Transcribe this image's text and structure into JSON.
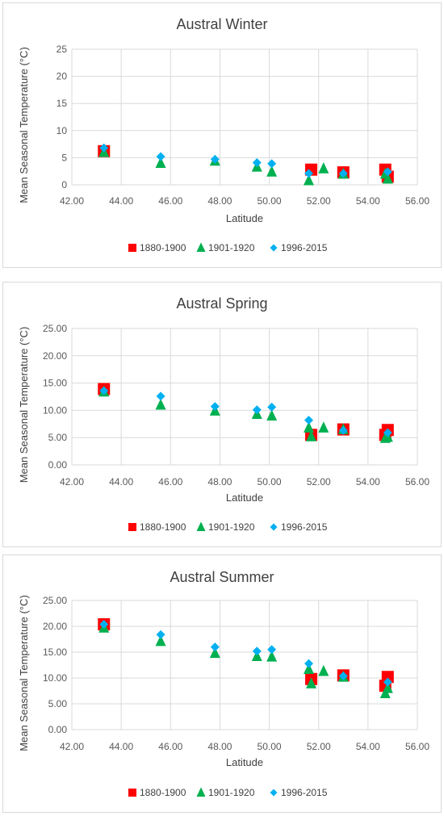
{
  "chart_data": [
    {
      "type": "scatter",
      "title": "Austral Winter",
      "xlabel": "Latitude",
      "ylabel": "Mean Seasonal Temperature (°C)",
      "xlim": [
        42,
        56
      ],
      "ylim": [
        0,
        25
      ],
      "x_ticks": [
        "42.00",
        "44.00",
        "46.00",
        "48.00",
        "50.00",
        "52.00",
        "54.00",
        "56.00"
      ],
      "y_ticks": [
        "0",
        "5",
        "10",
        "15",
        "20",
        "25"
      ],
      "grid": true,
      "legend": "bottom",
      "series": [
        {
          "name": "1880-1900",
          "color": "#ff0000",
          "marker": "square",
          "x": [
            43.3,
            51.7,
            53.0,
            54.7,
            54.8
          ],
          "y": [
            6.2,
            2.8,
            2.3,
            2.8,
            1.5
          ]
        },
        {
          "name": "1901-1920",
          "color": "#00b050",
          "marker": "triangle",
          "x": [
            43.3,
            45.6,
            47.8,
            49.5,
            50.1,
            51.6,
            52.2,
            53.0,
            54.7,
            54.8
          ],
          "y": [
            6.0,
            4.0,
            4.4,
            3.3,
            2.4,
            0.8,
            3.0,
            2.0,
            2.0,
            1.1
          ]
        },
        {
          "name": "1996-2015",
          "color": "#00b0f0",
          "marker": "diamond",
          "x": [
            43.3,
            45.6,
            47.8,
            49.5,
            50.1,
            51.6,
            53.0,
            54.8
          ],
          "y": [
            6.8,
            5.2,
            4.7,
            4.1,
            3.9,
            2.1,
            2.1,
            2.4
          ]
        }
      ]
    },
    {
      "type": "scatter",
      "title": "Austral Spring",
      "xlabel": "Latitude",
      "ylabel": "Mean Seasonal Temperature (°C)",
      "xlim": [
        42,
        56
      ],
      "ylim": [
        0,
        25
      ],
      "x_ticks": [
        "42.00",
        "44.00",
        "46.00",
        "48.00",
        "50.00",
        "52.00",
        "54.00",
        "56.00"
      ],
      "y_ticks": [
        "0.00",
        "5.00",
        "10.00",
        "15.00",
        "20.00",
        "25.00"
      ],
      "grid": true,
      "legend": "bottom",
      "series": [
        {
          "name": "1880-1900",
          "color": "#ff0000",
          "marker": "square",
          "x": [
            43.3,
            51.7,
            53.0,
            54.7,
            54.8
          ],
          "y": [
            13.9,
            5.5,
            6.5,
            5.5,
            6.4
          ]
        },
        {
          "name": "1901-1920",
          "color": "#00b050",
          "marker": "triangle",
          "x": [
            43.3,
            45.6,
            47.8,
            49.5,
            50.1,
            51.6,
            51.7,
            52.2,
            53.0,
            54.7,
            54.8
          ],
          "y": [
            13.4,
            11.0,
            9.9,
            9.3,
            9.0,
            6.8,
            5.2,
            6.8,
            6.5,
            4.9,
            5.1
          ]
        },
        {
          "name": "1996-2015",
          "color": "#00b0f0",
          "marker": "diamond",
          "x": [
            43.3,
            45.6,
            47.8,
            49.5,
            50.1,
            51.6,
            53.0,
            54.8
          ],
          "y": [
            13.6,
            12.6,
            10.7,
            10.1,
            10.6,
            8.2,
            6.3,
            5.9
          ]
        }
      ]
    },
    {
      "type": "scatter",
      "title": "Austral Summer",
      "xlabel": "Latitude",
      "ylabel": "Mean Seasonal Temperature (°C)",
      "xlim": [
        42,
        56
      ],
      "ylim": [
        0,
        25
      ],
      "x_ticks": [
        "42.00",
        "44.00",
        "46.00",
        "48.00",
        "50.00",
        "52.00",
        "54.00",
        "56.00"
      ],
      "y_ticks": [
        "0.00",
        "5.00",
        "10.00",
        "15.00",
        "20.00",
        "25.00"
      ],
      "grid": true,
      "legend": "bottom",
      "series": [
        {
          "name": "1880-1900",
          "color": "#ff0000",
          "marker": "square",
          "x": [
            43.3,
            51.7,
            53.0,
            54.7,
            54.8
          ],
          "y": [
            20.4,
            9.8,
            10.5,
            8.5,
            10.2
          ]
        },
        {
          "name": "1901-1920",
          "color": "#00b050",
          "marker": "triangle",
          "x": [
            43.3,
            45.6,
            47.8,
            49.5,
            50.1,
            51.6,
            51.7,
            52.2,
            53.0,
            54.7,
            54.8
          ],
          "y": [
            19.7,
            17.1,
            14.8,
            14.2,
            14.1,
            11.7,
            8.9,
            11.3,
            10.2,
            7.0,
            8.0
          ]
        },
        {
          "name": "1996-2015",
          "color": "#00b0f0",
          "marker": "diamond",
          "x": [
            43.3,
            45.6,
            47.8,
            49.5,
            50.1,
            51.6,
            53.0,
            54.8
          ],
          "y": [
            20.4,
            18.4,
            16.0,
            15.2,
            15.5,
            12.8,
            10.4,
            9.2
          ]
        }
      ]
    }
  ]
}
